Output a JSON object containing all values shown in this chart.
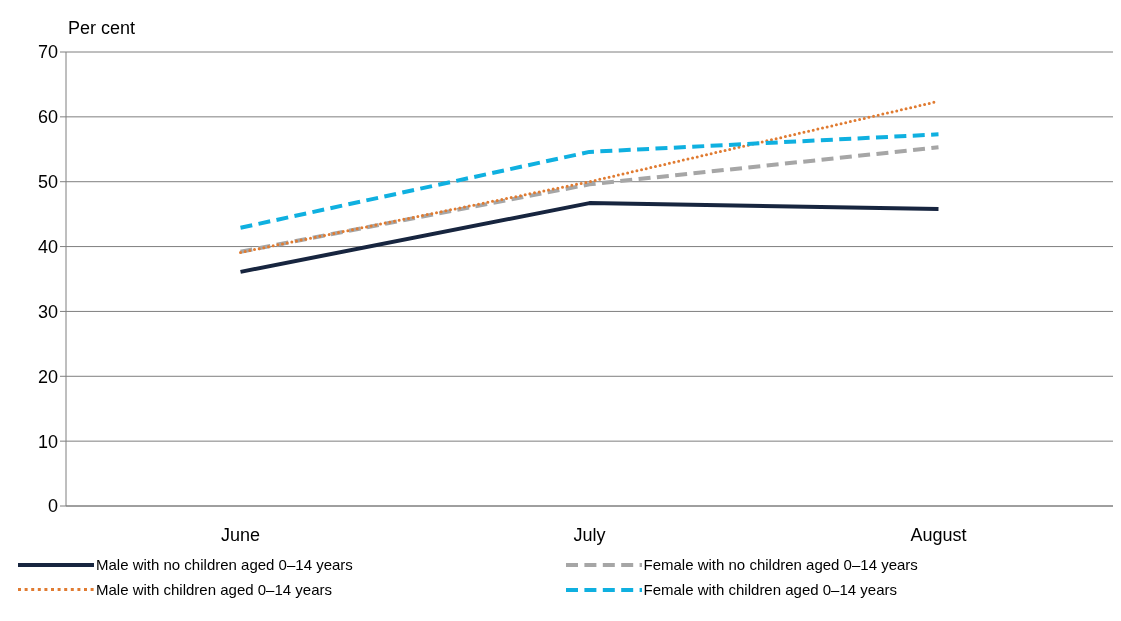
{
  "chart_data": {
    "type": "line",
    "ylabel": "Per cent",
    "categories": [
      "June",
      "July",
      "August"
    ],
    "series": [
      {
        "name": "Male with no children aged 0–14 years",
        "color": "#17253f",
        "line_style": "solid",
        "values": [
          36.1,
          46.7,
          45.8
        ]
      },
      {
        "name": "Female with no children aged 0–14 years",
        "color": "#a6a6a6",
        "line_style": "dashed",
        "values": [
          39.2,
          49.6,
          55.3
        ]
      },
      {
        "name": "Male with children aged 0–14 years",
        "color": "#e07b31",
        "line_style": "dotted",
        "values": [
          39.1,
          50.0,
          62.4
        ]
      },
      {
        "name": "Female with children aged 0–14 years",
        "color": "#0fb0e0",
        "line_style": "dashed",
        "values": [
          42.9,
          54.6,
          57.3
        ]
      }
    ],
    "ylim": [
      0,
      70
    ],
    "yticks": [
      0,
      10,
      20,
      30,
      40,
      50,
      60,
      70
    ],
    "grid": "y",
    "legend": "bottom",
    "marker": "none"
  }
}
